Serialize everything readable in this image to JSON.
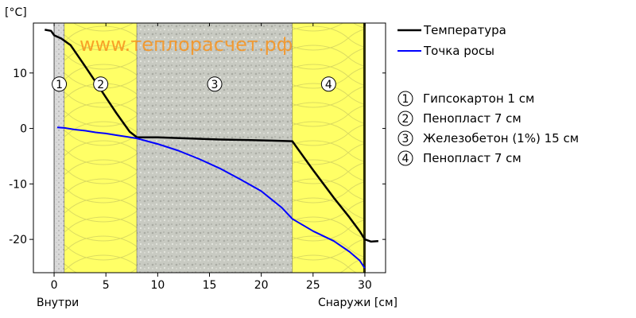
{
  "chart_data": {
    "type": "line",
    "y_unit_label": "[°C]",
    "watermark": "www.теплорасчет.рф",
    "x_left_label": "Внутри",
    "x_right_label": "Снаружи [см]",
    "xlim": [
      -2,
      32
    ],
    "ylim": [
      -26,
      19
    ],
    "x_ticks": [
      0,
      5,
      10,
      15,
      20,
      25,
      30
    ],
    "y_ticks": [
      10,
      0,
      -10,
      -20
    ],
    "colors": {
      "temperature": "#000000",
      "dew_point": "#0000ff",
      "gypsum": "#d7d7d7",
      "foam": "#ffff66",
      "concrete": "#c8cac2",
      "outer_strip": "#2a2a00"
    },
    "layers": [
      {
        "num": "1",
        "from": 0,
        "to": 1,
        "material": "gypsum",
        "legend": "Гипсокартон 1 см"
      },
      {
        "num": "2",
        "from": 1,
        "to": 8,
        "material": "foam",
        "legend": "Пенопласт 7 см"
      },
      {
        "num": "3",
        "from": 8,
        "to": 23,
        "material": "concrete",
        "legend": "Железобетон (1%) 15 см"
      },
      {
        "num": "4",
        "from": 23,
        "to": 30,
        "material": "foam",
        "legend": "Пенопласт 7 см"
      }
    ],
    "series": [
      {
        "name": "Температура",
        "color": "#000000",
        "points": [
          [
            -0.9,
            17.8
          ],
          [
            -0.3,
            17.6
          ],
          [
            0,
            16.8
          ],
          [
            0.7,
            16.2
          ],
          [
            1,
            15.8
          ],
          [
            1.6,
            15.0
          ],
          [
            3,
            11.2
          ],
          [
            4.5,
            7.0
          ],
          [
            6,
            2.8
          ],
          [
            7.3,
            -0.6
          ],
          [
            8,
            -1.6
          ],
          [
            10,
            -1.6
          ],
          [
            13,
            -1.8
          ],
          [
            16,
            -2.0
          ],
          [
            19,
            -2.1
          ],
          [
            21,
            -2.2
          ],
          [
            23,
            -2.3
          ],
          [
            25,
            -7.5
          ],
          [
            27,
            -12.5
          ],
          [
            28.5,
            -16.0
          ],
          [
            29.5,
            -18.5
          ],
          [
            30,
            -20.0
          ],
          [
            30.6,
            -20.4
          ],
          [
            31.3,
            -20.3
          ]
        ]
      },
      {
        "name": "Точка росы",
        "color": "#0000ff",
        "points": [
          [
            0.3,
            0.2
          ],
          [
            1,
            0.1
          ],
          [
            2,
            -0.2
          ],
          [
            3,
            -0.4
          ],
          [
            4,
            -0.7
          ],
          [
            5,
            -0.9
          ],
          [
            6,
            -1.2
          ],
          [
            7,
            -1.5
          ],
          [
            8,
            -1.8
          ],
          [
            10,
            -2.8
          ],
          [
            12,
            -4.0
          ],
          [
            14,
            -5.5
          ],
          [
            16,
            -7.2
          ],
          [
            18,
            -9.2
          ],
          [
            20,
            -11.3
          ],
          [
            22,
            -14.3
          ],
          [
            23,
            -16.3
          ],
          [
            25,
            -18.5
          ],
          [
            27,
            -20.3
          ],
          [
            28.5,
            -22.2
          ],
          [
            29.5,
            -23.8
          ],
          [
            30,
            -25.2
          ]
        ]
      }
    ],
    "legend_position": "right"
  }
}
